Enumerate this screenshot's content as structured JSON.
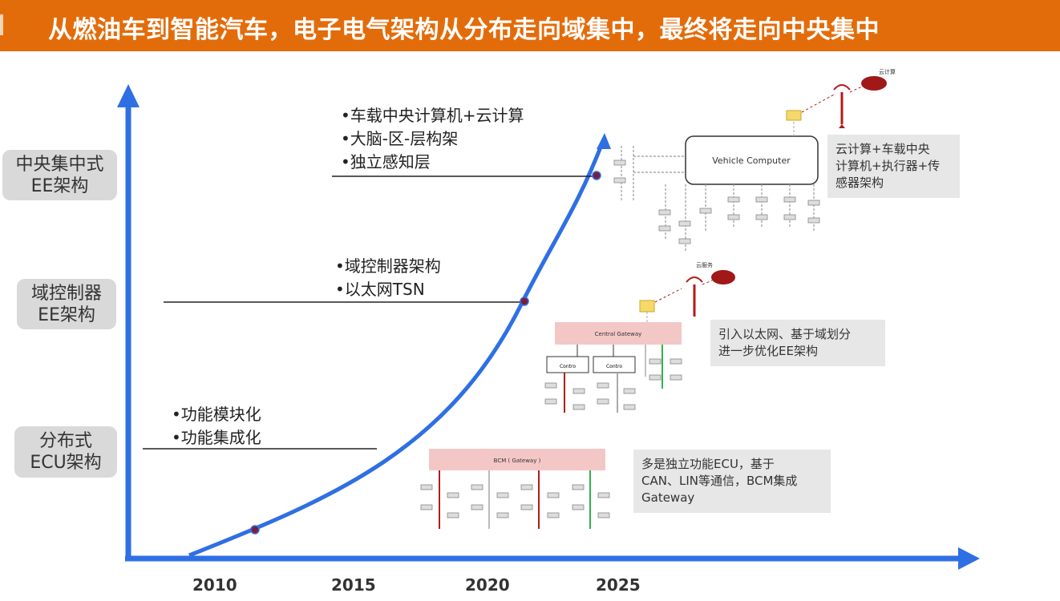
{
  "title": "从燃油车到智能汽车，电子电气架构从分布走向域集中，最终将走向中央集中",
  "levels": [
    {
      "line1": "中央集中式",
      "line2": "EE架构"
    },
    {
      "line1": "域控制器",
      "line2": "EE架构"
    },
    {
      "line1": "分布式",
      "line2": "ECU架构"
    }
  ],
  "features": {
    "central": [
      "车载中央计算机+云计算",
      "大脑-区-层构架",
      "独立感知层"
    ],
    "domain": [
      "域控制器架构",
      "以太网TSN"
    ],
    "distributed": [
      "功能模块化",
      "功能集成化"
    ]
  },
  "years": [
    "2010",
    "2015",
    "2020",
    "2025"
  ],
  "notes": {
    "central": [
      "云计算+车载中央",
      "计算机+执行器+传",
      "感器架构"
    ],
    "domain": [
      "引入以太网、基于域划分",
      "进一步优化EE架构"
    ],
    "distributed": [
      "多是独立功能ECU，基于",
      "CAN、LIN等通信，BCM集成",
      "Gateway"
    ]
  },
  "diagram_labels": {
    "vehicle_computer": "Vehicle Computer",
    "central_gateway": "Central Gateway",
    "bcm_gateway": "BCM ( Gateway )",
    "domain_controller": "Contro",
    "cloud_top": "云计算",
    "cloud_mid": "云服务"
  },
  "colors": {
    "banner": "#e36c0a",
    "axis": "#2f6fe4",
    "curve": "#2f6fe4",
    "milestone": "#7a1f3a",
    "gateway_fill": "#f4c7c7",
    "bus_red": "#b01b1b",
    "bus_green": "#2fb34a"
  }
}
